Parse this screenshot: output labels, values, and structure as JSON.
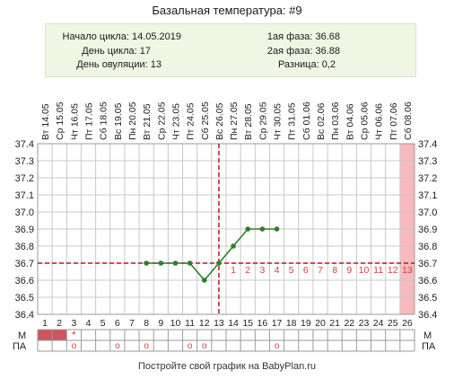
{
  "info": {
    "cycle_start": "Начало цикла: 14.05.2019",
    "cycle_day": "День цикла: 17",
    "ovulation_day": "День овуляции: 13",
    "phase1": "1ая фаза: 36.68",
    "phase2": "2ая фаза: 36.88",
    "difference": "Разница: 0,2"
  },
  "footer": "Постройте свой график на BabyPlan.ru",
  "colors": {
    "grid": "#c8c8c8",
    "coverline": "#c0141c",
    "line": "#2e7d2e",
    "marker": "#2e7d2e",
    "phase_number": "#d04040",
    "highlight_column": "#f7b9bd",
    "menstruation": "#cc5560"
  },
  "chart_data": {
    "type": "line",
    "title": "Базальная температура: #9",
    "dates": [
      "Вт 14.05",
      "Ср 15.05",
      "Чт 16.05",
      "Пт 17.05",
      "Сб 18.05",
      "Вс 19.05",
      "Пн 20.05",
      "Вт 21.05",
      "Ср 22.05",
      "Чт 23.05",
      "Пт 24.05",
      "Сб 25.05",
      "Вс 26.05",
      "Пн 27.05",
      "Вт 28.05",
      "Ср 29.05",
      "Чт 30.05",
      "Пт 31.05",
      "Сб 01.06",
      "Вс 02.06",
      "Пн 03.06",
      "Вт 04.06",
      "Ср 05.06",
      "Чт 06.06",
      "Пт 07.06",
      "Сб 08.06"
    ],
    "days": [
      1,
      2,
      3,
      4,
      5,
      6,
      7,
      8,
      9,
      10,
      11,
      12,
      13,
      14,
      15,
      16,
      17,
      18,
      19,
      20,
      21,
      22,
      23,
      24,
      25,
      26
    ],
    "series": [
      {
        "x": [
          8,
          9,
          10,
          11,
          12,
          13,
          14,
          15,
          16,
          17
        ],
        "values": [
          36.7,
          36.7,
          36.7,
          36.7,
          36.6,
          36.7,
          36.8,
          36.9,
          36.9,
          36.9
        ]
      }
    ],
    "ylim": [
      36.4,
      37.4
    ],
    "yticks": [
      "36.4",
      "36.5",
      "36.6",
      "36.7",
      "36.8",
      "36.9",
      "37.0",
      "37.1",
      "37.2",
      "37.3",
      "37.4"
    ],
    "coverline": 36.7,
    "ovulation_day": 13,
    "highlight_day": 26,
    "phase_numbers": [
      {
        "day": 14,
        "label": "1"
      },
      {
        "day": 15,
        "label": "2"
      },
      {
        "day": 16,
        "label": "3"
      },
      {
        "day": 17,
        "label": "4"
      },
      {
        "day": 18,
        "label": "5"
      },
      {
        "day": 19,
        "label": "6"
      },
      {
        "day": 20,
        "label": "7"
      },
      {
        "day": 21,
        "label": "8"
      },
      {
        "day": 22,
        "label": "9"
      },
      {
        "day": 23,
        "label": "10"
      },
      {
        "day": 24,
        "label": "11"
      },
      {
        "day": 25,
        "label": "12"
      },
      {
        "day": 26,
        "label": "13"
      }
    ],
    "m_row_label": "М",
    "pa_row_label": "ПА",
    "m_days": [
      1,
      2
    ],
    "m_star_day": 3,
    "star_symbol": "*",
    "pa_days": [
      3,
      6,
      8,
      11,
      12,
      17
    ],
    "pa_symbol": "o",
    "grid": true
  }
}
